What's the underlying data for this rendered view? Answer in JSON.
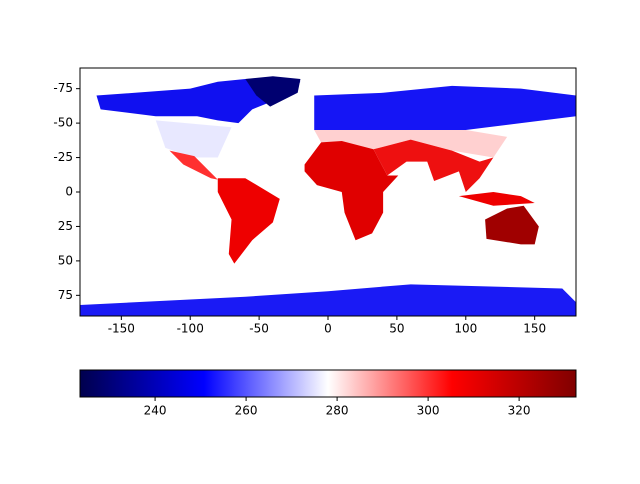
{
  "chart_data": {
    "type": "image",
    "xlim": [
      -180,
      180
    ],
    "ylim": [
      -90,
      90
    ],
    "y_inverted": true,
    "xticks": [
      -150,
      -100,
      -50,
      0,
      50,
      100,
      150
    ],
    "yticks": [
      -75,
      -50,
      -25,
      0,
      25,
      50,
      75
    ],
    "colormap": "seismic",
    "colorbar": {
      "orientation": "horizontal",
      "clim": [
        223.5,
        332.5
      ],
      "ticks": [
        240,
        260,
        280,
        300,
        320
      ]
    }
  }
}
